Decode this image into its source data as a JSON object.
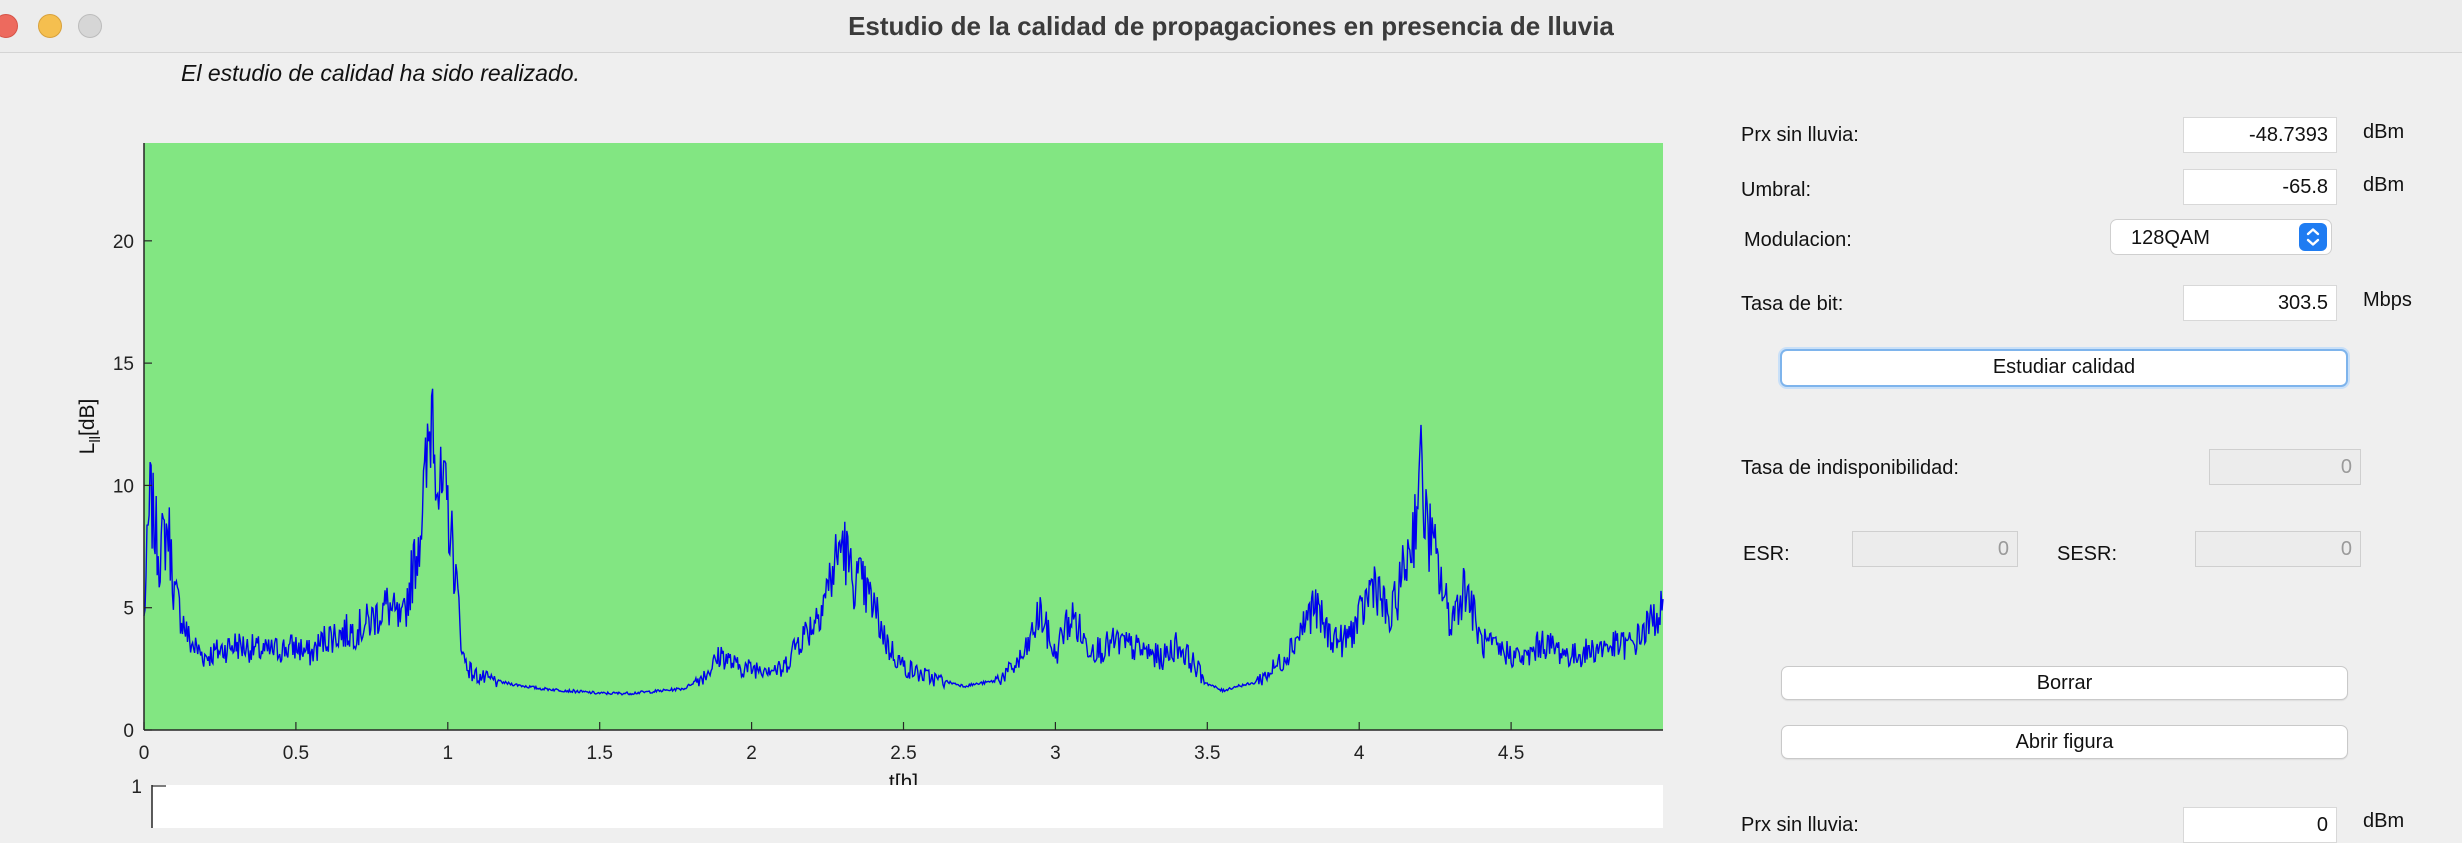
{
  "window": {
    "title": "Estudio de la calidad de propagaciones en presencia de lluvia"
  },
  "status_text": "El estudio de calidad ha sido realizado.",
  "form": {
    "prx_label": "Prx sin lluvia:",
    "prx_value": "-48.7393",
    "prx_unit": "dBm",
    "umbral_label": "Umbral:",
    "umbral_value": "-65.8",
    "umbral_unit": "dBm",
    "modulacion_label": "Modulacion:",
    "modulacion_value": "128QAM",
    "tasa_bit_label": "Tasa de bit:",
    "tasa_bit_value": "303.5",
    "tasa_bit_unit": "Mbps",
    "study_button": "Estudiar calidad",
    "indisp_label": "Tasa de indisponibilidad:",
    "indisp_value": "0",
    "esr_label": "ESR:",
    "esr_value": "0",
    "sesr_label": "SESR:",
    "sesr_value": "0",
    "clear_button": "Borrar",
    "open_button": "Abrir figura",
    "prx2_label": "Prx sin lluvia:",
    "prx2_value": "0",
    "prx2_unit": "dBm"
  },
  "colors": {
    "plot_bg": "#82e682",
    "line": "#0000ee",
    "focus": "#7eb4ec",
    "select_arrow": "#1f7cf2"
  },
  "chart_data": [
    {
      "type": "line",
      "title": "",
      "xlabel": "t[h]",
      "ylabel": "L_ll[dB]",
      "xlim": [
        0,
        5
      ],
      "ylim": [
        0,
        24
      ],
      "xticks": [
        "0",
        "0.5",
        "1",
        "1.5",
        "2",
        "2.5",
        "3",
        "3.5",
        "4",
        "4.5"
      ],
      "yticks": [
        "0",
        "5",
        "10",
        "15",
        "20"
      ],
      "grid": false,
      "series": [
        {
          "x": [
            0,
            0.02,
            0.05,
            0.08,
            0.1,
            0.15,
            0.2,
            0.3,
            0.4,
            0.5,
            0.55,
            0.6,
            0.7,
            0.75,
            0.8,
            0.85,
            0.9,
            0.93,
            0.95,
            0.97,
            1.0,
            1.03,
            1.05,
            1.08,
            1.12,
            1.2,
            1.3,
            1.4,
            1.5,
            1.6,
            1.7,
            1.78,
            1.85,
            1.9,
            1.95,
            2.0,
            2.05,
            2.1,
            2.15,
            2.2,
            2.25,
            2.3,
            2.33,
            2.36,
            2.4,
            2.45,
            2.5,
            2.55,
            2.6,
            2.7,
            2.8,
            2.85,
            2.9,
            2.95,
            3.0,
            3.03,
            3.06,
            3.1,
            3.15,
            3.2,
            3.25,
            3.3,
            3.35,
            3.4,
            3.45,
            3.5,
            3.55,
            3.6,
            3.65,
            3.7,
            3.75,
            3.8,
            3.85,
            3.9,
            3.95,
            4.0,
            4.05,
            4.1,
            4.15,
            4.18,
            4.2,
            4.22,
            4.25,
            4.3,
            4.35,
            4.4,
            4.45,
            4.5,
            4.55,
            4.6,
            4.7,
            4.8,
            4.9,
            5.0
          ],
          "y": [
            4.5,
            9.5,
            7.2,
            8.3,
            5.6,
            3.6,
            3.0,
            3.5,
            3.2,
            3.4,
            3.1,
            3.8,
            4.1,
            4.5,
            5.1,
            4.3,
            7.5,
            10.5,
            13.8,
            9.8,
            9.1,
            5.8,
            3.0,
            2.3,
            2.1,
            1.9,
            1.7,
            1.6,
            1.5,
            1.5,
            1.6,
            1.7,
            2.3,
            3.1,
            2.6,
            2.5,
            2.6,
            2.4,
            3.6,
            4.3,
            5.8,
            7.8,
            6.2,
            6.0,
            5.1,
            3.4,
            2.6,
            2.3,
            2.1,
            1.8,
            2.0,
            2.4,
            3.1,
            4.8,
            3.0,
            4.2,
            4.6,
            3.5,
            3.3,
            3.6,
            3.4,
            3.2,
            2.9,
            3.5,
            2.8,
            1.9,
            1.6,
            1.8,
            1.9,
            2.3,
            2.9,
            3.9,
            5.1,
            3.9,
            3.6,
            4.5,
            6.2,
            4.3,
            6.7,
            8.2,
            10.9,
            8.5,
            7.1,
            4.4,
            6.0,
            3.6,
            3.3,
            3.1,
            2.9,
            3.6,
            3.0,
            3.4,
            3.5,
            5.0
          ]
        }
      ]
    },
    {
      "type": "line",
      "title": "",
      "yticks": [
        "1"
      ]
    }
  ]
}
